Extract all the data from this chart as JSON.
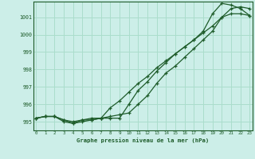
{
  "bg_color": "#cceee8",
  "grid_color": "#aaddcc",
  "line_color": "#1e5c2a",
  "xlabel": "Graphe pression niveau de la mer (hPa)",
  "x_ticks": [
    0,
    1,
    2,
    3,
    4,
    5,
    6,
    7,
    8,
    9,
    10,
    11,
    12,
    13,
    14,
    15,
    16,
    17,
    18,
    19,
    20,
    21,
    22,
    23
  ],
  "y_ticks": [
    995,
    996,
    997,
    998,
    999,
    1000,
    1001
  ],
  "xlim": [
    -0.3,
    23.3
  ],
  "ylim": [
    994.5,
    1001.9
  ],
  "line1": [
    995.2,
    995.3,
    995.3,
    995.1,
    994.9,
    995.1,
    995.1,
    995.2,
    995.3,
    995.4,
    995.5,
    996.0,
    996.5,
    997.2,
    997.8,
    998.2,
    998.7,
    999.2,
    999.7,
    1000.2,
    1001.0,
    1001.5,
    1001.6,
    1001.5
  ],
  "line2": [
    995.2,
    995.3,
    995.3,
    995.0,
    994.9,
    995.0,
    995.1,
    995.2,
    995.2,
    995.2,
    996.0,
    996.8,
    997.3,
    997.9,
    998.4,
    998.9,
    999.3,
    999.7,
    1000.2,
    1001.2,
    1001.8,
    1001.7,
    1001.5,
    1001.1
  ],
  "line3": [
    995.2,
    995.3,
    995.3,
    995.1,
    995.0,
    995.1,
    995.2,
    995.2,
    995.8,
    996.2,
    996.7,
    997.2,
    997.6,
    998.1,
    998.5,
    998.9,
    999.3,
    999.7,
    1000.1,
    1000.5,
    1001.0,
    1001.2,
    1001.2,
    1001.1
  ]
}
